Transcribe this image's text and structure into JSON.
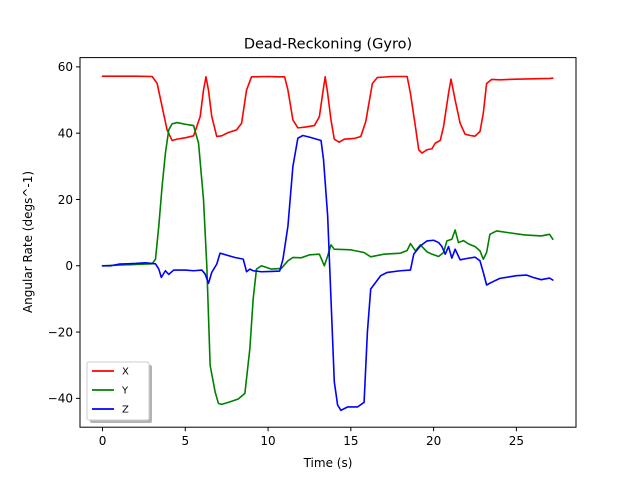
{
  "chart_data": {
    "type": "line",
    "title": "Dead-Reckoning (Gyro)",
    "xlabel": "Time (s)",
    "ylabel": "Angular Rate (degs^-1)",
    "xlim": [
      -1.36,
      28.6
    ],
    "ylim": [
      -48.7,
      62.8
    ],
    "xticks": [
      0,
      5,
      10,
      15,
      20,
      25
    ],
    "yticks": [
      -40,
      -20,
      0,
      20,
      40,
      60
    ],
    "grid": false,
    "legend_position": "lower-left",
    "series": [
      {
        "name": "X",
        "color": "#ff0000",
        "points": [
          [
            0,
            57.2
          ],
          [
            1,
            57.2
          ],
          [
            2,
            57.2
          ],
          [
            3,
            57.1
          ],
          [
            3.3,
            55
          ],
          [
            3.6,
            48
          ],
          [
            3.9,
            41
          ],
          [
            4.2,
            37.8
          ],
          [
            4.5,
            38.2
          ],
          [
            5,
            38.6
          ],
          [
            5.5,
            39.2
          ],
          [
            5.9,
            45
          ],
          [
            6.1,
            53
          ],
          [
            6.25,
            57
          ],
          [
            6.4,
            53
          ],
          [
            6.6,
            45
          ],
          [
            6.9,
            39
          ],
          [
            7.2,
            39.2
          ],
          [
            7.6,
            40.2
          ],
          [
            8.1,
            41
          ],
          [
            8.4,
            43
          ],
          [
            8.7,
            53
          ],
          [
            9,
            57
          ],
          [
            10,
            57.1
          ],
          [
            10.5,
            57
          ],
          [
            11,
            57
          ],
          [
            11.2,
            53
          ],
          [
            11.5,
            44
          ],
          [
            11.8,
            41.6
          ],
          [
            12.2,
            41.8
          ],
          [
            12.8,
            42.3
          ],
          [
            13.1,
            45
          ],
          [
            13.3,
            52
          ],
          [
            13.45,
            57
          ],
          [
            13.6,
            52
          ],
          [
            13.8,
            44
          ],
          [
            14,
            38.2
          ],
          [
            14.3,
            37.3
          ],
          [
            14.6,
            38.2
          ],
          [
            15.2,
            38.4
          ],
          [
            15.6,
            39
          ],
          [
            15.9,
            43.5
          ],
          [
            16.3,
            55
          ],
          [
            16.6,
            56.8
          ],
          [
            17.5,
            57.1
          ],
          [
            18.4,
            57.1
          ],
          [
            18.6,
            52
          ],
          [
            18.9,
            42
          ],
          [
            19.1,
            35
          ],
          [
            19.3,
            34
          ],
          [
            19.6,
            35
          ],
          [
            19.9,
            35.3
          ],
          [
            20.1,
            37
          ],
          [
            20.4,
            37.8
          ],
          [
            20.6,
            42
          ],
          [
            20.9,
            52
          ],
          [
            21.05,
            56.3
          ],
          [
            21.3,
            50
          ],
          [
            21.6,
            43
          ],
          [
            21.9,
            39.7
          ],
          [
            22.2,
            39.3
          ],
          [
            22.5,
            39.1
          ],
          [
            22.8,
            40.5
          ],
          [
            23,
            46
          ],
          [
            23.2,
            55
          ],
          [
            23.5,
            56.2
          ],
          [
            24,
            56.1
          ],
          [
            25,
            56.3
          ],
          [
            26,
            56.4
          ],
          [
            27,
            56.5
          ],
          [
            27.2,
            56.6
          ]
        ]
      },
      {
        "name": "Y",
        "color": "#008000",
        "points": [
          [
            0,
            0
          ],
          [
            1,
            0.2
          ],
          [
            2,
            0.4
          ],
          [
            3.0,
            0.6
          ],
          [
            3.2,
            2
          ],
          [
            3.4,
            12
          ],
          [
            3.6,
            24
          ],
          [
            3.8,
            34
          ],
          [
            4.0,
            41
          ],
          [
            4.2,
            42.8
          ],
          [
            4.5,
            43.2
          ],
          [
            5,
            42.7
          ],
          [
            5.5,
            42.3
          ],
          [
            5.8,
            37
          ],
          [
            6.1,
            20
          ],
          [
            6.3,
            0
          ],
          [
            6.5,
            -30
          ],
          [
            6.8,
            -38
          ],
          [
            7.0,
            -41.5
          ],
          [
            7.2,
            -41.8
          ],
          [
            7.6,
            -41.2
          ],
          [
            8.2,
            -40.2
          ],
          [
            8.6,
            -38.5
          ],
          [
            8.9,
            -25
          ],
          [
            9.1,
            -10
          ],
          [
            9.3,
            -1
          ],
          [
            9.6,
            0
          ],
          [
            10.2,
            -1
          ],
          [
            10.8,
            -0.8
          ],
          [
            11.2,
            1.5
          ],
          [
            11.5,
            2.5
          ],
          [
            12,
            2.4
          ],
          [
            12.5,
            3.3
          ],
          [
            13.1,
            3.5
          ],
          [
            13.4,
            0
          ],
          [
            13.6,
            3
          ],
          [
            13.8,
            6.3
          ],
          [
            14,
            5
          ],
          [
            15,
            4.8
          ],
          [
            15.8,
            4
          ],
          [
            16.2,
            2.7
          ],
          [
            17,
            3.5
          ],
          [
            18,
            3.8
          ],
          [
            18.4,
            4.6
          ],
          [
            18.6,
            6.7
          ],
          [
            18.9,
            4.5
          ],
          [
            19.2,
            6.3
          ],
          [
            19.6,
            4.2
          ],
          [
            19.9,
            3.5
          ],
          [
            20.3,
            2.8
          ],
          [
            20.6,
            4
          ],
          [
            20.8,
            7.5
          ],
          [
            21.1,
            8
          ],
          [
            21.3,
            10.8
          ],
          [
            21.5,
            7
          ],
          [
            21.8,
            7.6
          ],
          [
            22.1,
            6.6
          ],
          [
            22.5,
            5.8
          ],
          [
            22.8,
            4.5
          ],
          [
            23.0,
            2
          ],
          [
            23.2,
            4
          ],
          [
            23.4,
            9.5
          ],
          [
            23.8,
            10.5
          ],
          [
            24.5,
            10
          ],
          [
            25.5,
            9.3
          ],
          [
            26.5,
            9
          ],
          [
            27,
            9.5
          ],
          [
            27.2,
            8
          ]
        ]
      },
      {
        "name": "Z",
        "color": "#0000ff",
        "points": [
          [
            0,
            0
          ],
          [
            0.5,
            0
          ],
          [
            1,
            0.5
          ],
          [
            1.5,
            0.6
          ],
          [
            2,
            0.7
          ],
          [
            2.6,
            0.9
          ],
          [
            3.2,
            0.6
          ],
          [
            3.4,
            -1
          ],
          [
            3.55,
            -3.5
          ],
          [
            3.8,
            -1.5
          ],
          [
            4,
            -2.6
          ],
          [
            4.3,
            -1.3
          ],
          [
            5,
            -1.3
          ],
          [
            5.5,
            -1.5
          ],
          [
            6,
            -1.3
          ],
          [
            6.2,
            -2.5
          ],
          [
            6.4,
            -5.3
          ],
          [
            6.6,
            -2
          ],
          [
            6.9,
            0.5
          ],
          [
            7.1,
            3.8
          ],
          [
            7.5,
            3.2
          ],
          [
            8.0,
            2.5
          ],
          [
            8.5,
            2
          ],
          [
            8.7,
            -1.8
          ],
          [
            8.9,
            -1
          ],
          [
            9.1,
            -1.5
          ],
          [
            9.6,
            -1.8
          ],
          [
            10.2,
            -1.7
          ],
          [
            10.7,
            -1.6
          ],
          [
            10.9,
            2
          ],
          [
            11.2,
            12
          ],
          [
            11.5,
            30
          ],
          [
            11.8,
            38.5
          ],
          [
            12.1,
            39.3
          ],
          [
            12.5,
            38.8
          ],
          [
            13.2,
            37.8
          ],
          [
            13.35,
            32
          ],
          [
            13.6,
            15
          ],
          [
            13.8,
            -10
          ],
          [
            14.0,
            -35
          ],
          [
            14.2,
            -42
          ],
          [
            14.4,
            -43.6
          ],
          [
            14.8,
            -42.6
          ],
          [
            15.4,
            -42.6
          ],
          [
            15.8,
            -41.2
          ],
          [
            16.0,
            -20
          ],
          [
            16.2,
            -7
          ],
          [
            16.5,
            -5
          ],
          [
            16.8,
            -3
          ],
          [
            17.2,
            -2
          ],
          [
            18,
            -1.5
          ],
          [
            18.6,
            -1.3
          ],
          [
            18.8,
            3.5
          ],
          [
            19.2,
            6
          ],
          [
            19.6,
            7.5
          ],
          [
            20.0,
            7.7
          ],
          [
            20.3,
            7
          ],
          [
            20.5,
            5.8
          ],
          [
            20.7,
            3.5
          ],
          [
            20.9,
            5.8
          ],
          [
            21.1,
            2.3
          ],
          [
            21.3,
            5
          ],
          [
            21.6,
            1.8
          ],
          [
            22,
            2.2
          ],
          [
            22.5,
            2.6
          ],
          [
            22.8,
            1.5
          ],
          [
            23.0,
            -2
          ],
          [
            23.2,
            -5.8
          ],
          [
            23.5,
            -5
          ],
          [
            24,
            -3.8
          ],
          [
            25,
            -3
          ],
          [
            25.6,
            -2.8
          ],
          [
            26,
            -3.5
          ],
          [
            26.5,
            -4.2
          ],
          [
            27,
            -3.7
          ],
          [
            27.2,
            -4.3
          ]
        ]
      }
    ]
  }
}
